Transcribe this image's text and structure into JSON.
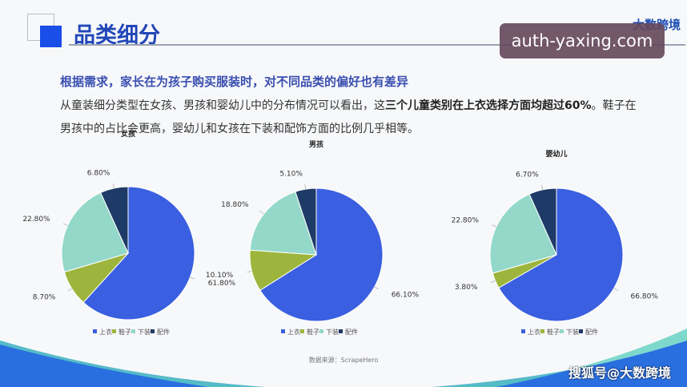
{
  "header": {
    "title": "品类细分",
    "logo": "大数跨境",
    "watermark": "auth-yaxing.com"
  },
  "subtitle": "根据需求，家长在为孩子购买服装时，对不同品类的偏好也有差异",
  "paragraph": {
    "part1": "从童装细分类型在女孩、男孩和婴幼儿中的分布情况可以看出，这",
    "bold": "三个儿童类别在上衣选择方面均超过60%",
    "part2": "。鞋子在男孩中的占比会更高，婴幼儿和女孩在下装和配饰方面的比例几乎相等。"
  },
  "source": "数据来源：ScrapeHero",
  "footer_watermark": "搜狐号@大数跨境",
  "colors": {
    "上衣": "#3a5fe0",
    "鞋子": "#9db53c",
    "下装": "#93d8c9",
    "配件": "#1e3a66"
  },
  "chart_data": [
    {
      "type": "pie",
      "title": "女孩",
      "categories": [
        "上衣",
        "鞋子",
        "下装",
        "配件"
      ],
      "values": [
        61.8,
        8.7,
        22.8,
        6.8
      ],
      "labels": [
        "61.80%",
        "8.70%",
        "22.80%",
        "6.80%"
      ],
      "legend": "bottom"
    },
    {
      "type": "pie",
      "title": "男孩",
      "categories": [
        "上衣",
        "鞋子",
        "下装",
        "配件"
      ],
      "values": [
        66.1,
        10.1,
        18.8,
        5.1
      ],
      "labels": [
        "66.10%",
        "10.10%",
        "18.80%",
        "5.10%"
      ],
      "legend": "bottom"
    },
    {
      "type": "pie",
      "title": "婴幼儿",
      "categories": [
        "上衣",
        "鞋子",
        "下装",
        "配件"
      ],
      "values": [
        66.8,
        3.8,
        22.8,
        6.7
      ],
      "labels": [
        "66.80%",
        "3.80%",
        "22.80%",
        "6.70%"
      ],
      "legend": "bottom"
    }
  ]
}
